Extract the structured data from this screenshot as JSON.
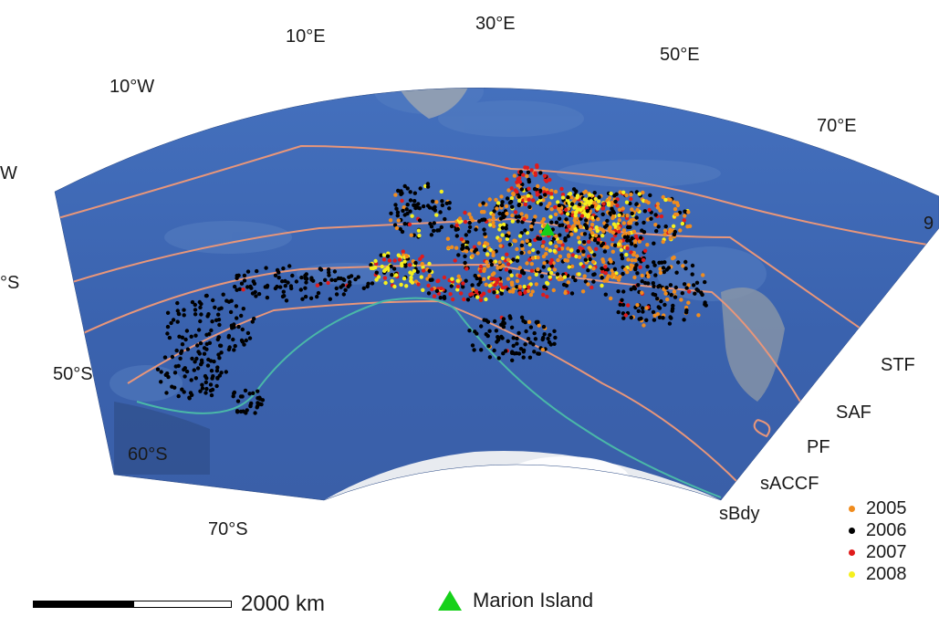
{
  "longitude_labels": [
    {
      "id": "lon-10w-partial",
      "text": "W"
    },
    {
      "id": "lon-10w",
      "text": "10°W"
    },
    {
      "id": "lon-10e",
      "text": "10°E"
    },
    {
      "id": "lon-30e",
      "text": "30°E"
    },
    {
      "id": "lon-50e",
      "text": "50°E"
    },
    {
      "id": "lon-70e",
      "text": "70°E"
    },
    {
      "id": "lon-90e-partial",
      "text": "9"
    }
  ],
  "latitude_labels": [
    {
      "id": "lat-40s-partial",
      "text": "°S"
    },
    {
      "id": "lat-50s",
      "text": "50°S"
    },
    {
      "id": "lat-60s",
      "text": "60°S"
    },
    {
      "id": "lat-70s",
      "text": "70°S"
    }
  ],
  "front_labels": [
    "STF",
    "SAF",
    "PF",
    "sACCF",
    "sBdy"
  ],
  "legend": {
    "years": [
      {
        "label": "2005",
        "color": "#f08c1e"
      },
      {
        "label": "2006",
        "color": "#000000"
      },
      {
        "label": "2007",
        "color": "#e01b1b"
      },
      {
        "label": "2008",
        "color": "#f5f01e"
      }
    ]
  },
  "marion_island": {
    "label": "Marion Island",
    "color": "#16d11a"
  },
  "scale_bar": {
    "label": "2000 km"
  },
  "colors": {
    "ocean": "#3a63b0",
    "front_line": "#e8967a",
    "sbdy_line": "#4ab8a8",
    "land": "#e6e9ee"
  }
}
